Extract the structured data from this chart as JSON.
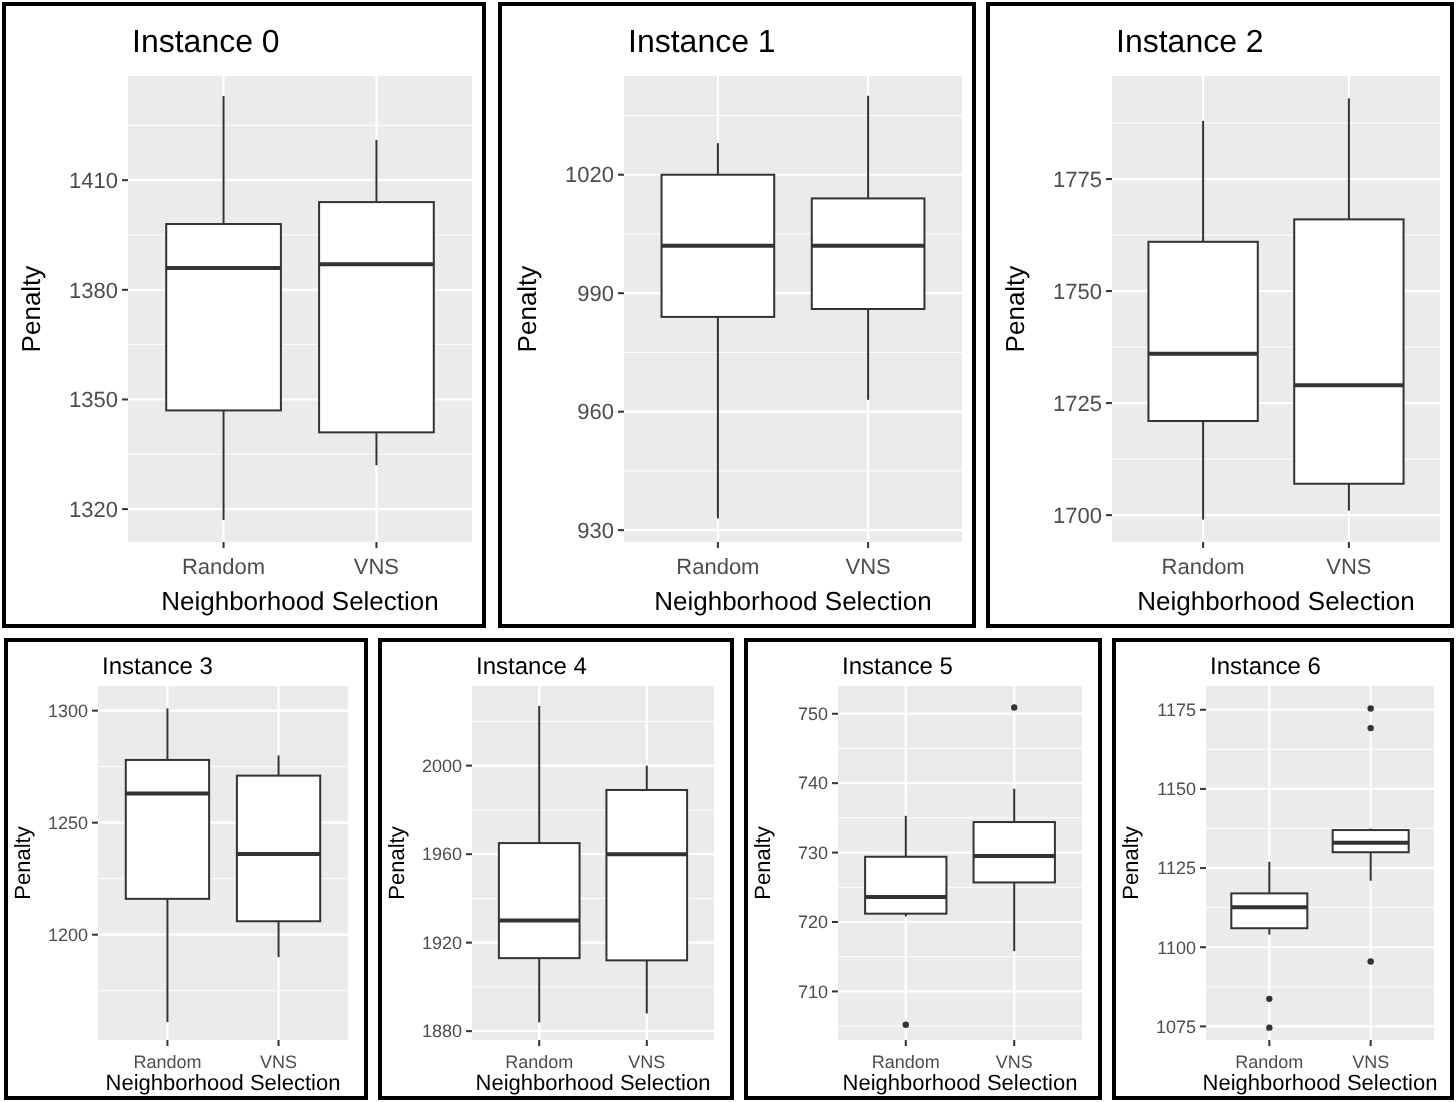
{
  "chart_data": [
    {
      "type": "box",
      "title": "Instance 0",
      "xlabel": "Neighborhood Selection",
      "ylabel": "Penalty",
      "categories": [
        "Random",
        "VNS"
      ],
      "ylim": [
        1311,
        1438.5
      ],
      "yticks": [
        1320,
        1350,
        1380,
        1410
      ],
      "grid": true,
      "boxes": [
        {
          "low": 1317,
          "q1": 1347,
          "median": 1386,
          "q3": 1398,
          "high": 1433
        },
        {
          "low": 1332,
          "q1": 1341,
          "median": 1387,
          "q3": 1404,
          "high": 1421
        }
      ]
    },
    {
      "type": "box",
      "title": "Instance 1",
      "xlabel": "Neighborhood Selection",
      "ylabel": "Penalty",
      "categories": [
        "Random",
        "VNS"
      ],
      "ylim": [
        927,
        1045
      ],
      "yticks": [
        930,
        960,
        990,
        1020
      ],
      "grid": true,
      "boxes": [
        {
          "low": 933,
          "q1": 984,
          "median": 1002,
          "q3": 1020,
          "high": 1028
        },
        {
          "low": 963,
          "q1": 986,
          "median": 1002,
          "q3": 1014,
          "high": 1040
        }
      ]
    },
    {
      "type": "box",
      "title": "Instance 2",
      "xlabel": "Neighborhood Selection",
      "ylabel": "Penalty",
      "categories": [
        "Random",
        "VNS"
      ],
      "ylim": [
        1694,
        1798
      ],
      "yticks": [
        1700,
        1725,
        1750,
        1775
      ],
      "grid": true,
      "boxes": [
        {
          "low": 1699,
          "q1": 1721,
          "median": 1736,
          "q3": 1761,
          "high": 1788
        },
        {
          "low": 1701,
          "q1": 1707,
          "median": 1729,
          "q3": 1766,
          "high": 1793
        }
      ]
    },
    {
      "type": "box",
      "title": "Instance 3",
      "xlabel": "Neighborhood Selection",
      "ylabel": "Penalty",
      "categories": [
        "Random",
        "VNS"
      ],
      "ylim": [
        1153,
        1311
      ],
      "yticks": [
        1200,
        1250,
        1300
      ],
      "grid": true,
      "boxes": [
        {
          "low": 1161,
          "q1": 1216,
          "median": 1263,
          "q3": 1278,
          "high": 1301
        },
        {
          "low": 1190,
          "q1": 1206,
          "median": 1236,
          "q3": 1271,
          "high": 1280
        }
      ]
    },
    {
      "type": "box",
      "title": "Instance 4",
      "xlabel": "Neighborhood Selection",
      "ylabel": "Penalty",
      "categories": [
        "Random",
        "VNS"
      ],
      "ylim": [
        1876,
        2036
      ],
      "yticks": [
        1880,
        1920,
        1960,
        2000
      ],
      "grid": true,
      "boxes": [
        {
          "low": 1884,
          "q1": 1913,
          "median": 1930,
          "q3": 1965,
          "high": 2027
        },
        {
          "low": 1888,
          "q1": 1912,
          "median": 1960,
          "q3": 1989,
          "high": 2000
        }
      ]
    },
    {
      "type": "box",
      "title": "Instance 5",
      "xlabel": "Neighborhood Selection",
      "ylabel": "Penalty",
      "categories": [
        "Random",
        "VNS"
      ],
      "ylim": [
        703,
        754
      ],
      "yticks": [
        710,
        720,
        730,
        740,
        750
      ],
      "grid": true,
      "boxes": [
        {
          "low": 720.8,
          "q1": 721.2,
          "median": 723.6,
          "q3": 729.4,
          "high": 735.3,
          "outliers": [
            705.2
          ]
        },
        {
          "low": 715.8,
          "q1": 725.7,
          "median": 729.5,
          "q3": 734.4,
          "high": 739.2,
          "outliers": [
            750.9
          ]
        }
      ]
    },
    {
      "type": "box",
      "title": "Instance 6",
      "xlabel": "Neighborhood Selection",
      "ylabel": "Penalty",
      "categories": [
        "Random",
        "VNS"
      ],
      "ylim": [
        1070.7,
        1182.5
      ],
      "yticks": [
        1075,
        1100,
        1125,
        1150,
        1175
      ],
      "grid": true,
      "boxes": [
        {
          "low": 1104,
          "q1": 1106,
          "median": 1112.6,
          "q3": 1117,
          "high": 1127,
          "outliers": [
            1083.7,
            1074.6
          ]
        },
        {
          "low": 1121,
          "q1": 1130,
          "median": 1133,
          "q3": 1137,
          "high": 1137.5,
          "outliers": [
            1175.4,
            1169.2,
            1095.5
          ]
        }
      ]
    }
  ]
}
